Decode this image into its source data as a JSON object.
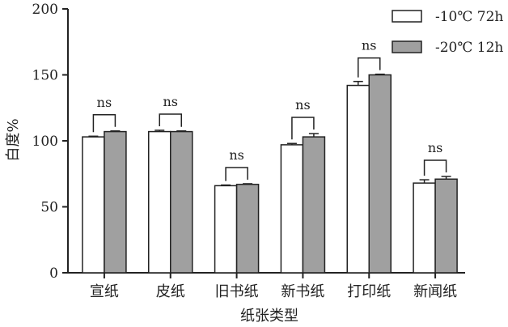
{
  "chart_data": {
    "type": "bar",
    "title": "",
    "xlabel": "纸张类型",
    "ylabel": "白度%",
    "ylim": [
      0,
      200
    ],
    "yticks": [
      0,
      50,
      100,
      150,
      200
    ],
    "categories": [
      "宣纸",
      "皮纸",
      "旧书纸",
      "新书纸",
      "打印纸",
      "新闻纸"
    ],
    "series": [
      {
        "name": "-10℃ 72h",
        "color": "#ffffff",
        "values": [
          103,
          107,
          66,
          97,
          142,
          68
        ],
        "errors": [
          0.5,
          1,
          0.5,
          1,
          3,
          2.5
        ]
      },
      {
        "name": "-20℃ 12h",
        "color": "#a0a0a0",
        "values": [
          107,
          107,
          67,
          103,
          150,
          71
        ],
        "errors": [
          0.5,
          0.5,
          0.5,
          2.5,
          0.5,
          2
        ]
      }
    ],
    "significance": [
      "ns",
      "ns",
      "ns",
      "ns",
      "ns",
      "ns"
    ],
    "legend_position": "top-right",
    "grid": false
  }
}
